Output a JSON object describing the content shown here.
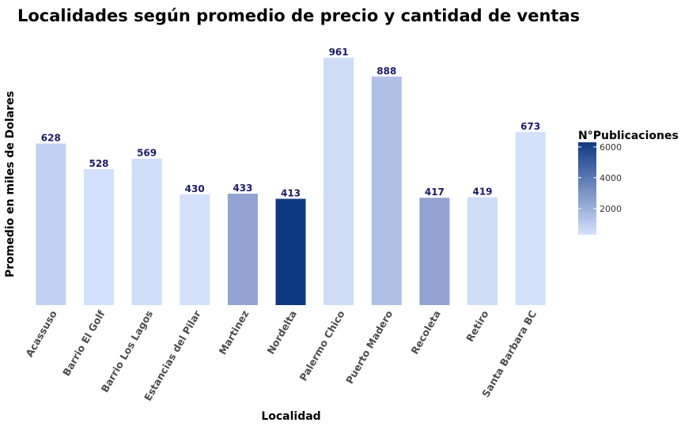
{
  "chart_data": {
    "type": "bar",
    "title": "Localidades según promedio de precio y cantidad de ventas",
    "xlabel": "Localidad",
    "ylabel": "Promedio en miles de Dolares",
    "categories": [
      "Acassuso",
      "Barrio El Golf",
      "Barrio Los Lagos",
      "Estancias del Pilar",
      "Martinez",
      "Nordelta",
      "Palermo Chico",
      "Puerto Madero",
      "Recoleta",
      "Retiro",
      "Santa Barbara BC"
    ],
    "values": [
      628,
      528,
      569,
      430,
      433,
      413,
      961,
      888,
      417,
      419,
      673
    ],
    "value_labels": [
      "628",
      "528",
      "569",
      "430",
      "433",
      "413",
      "961",
      "888",
      "417",
      "419",
      "673"
    ],
    "colors": [
      "#c2d1f2",
      "#d4e1fc",
      "#d0ddf9",
      "#d4e1fc",
      "#94a3d1",
      "#0f3882",
      "#cfdcf8",
      "#b1c1e6",
      "#94a3d1",
      "#cfdcf8",
      "#d4e1fc"
    ],
    "ylim": [
      0,
      1000
    ],
    "grid": false,
    "legend": {
      "title": "N°Publicaciones",
      "placement": "right",
      "ticks": [
        2000,
        4000,
        6000
      ],
      "tick_labels": [
        "2000",
        "4000",
        "6000"
      ],
      "range": [
        300,
        6300
      ],
      "color_low": "#d4e1fc",
      "color_high": "#0f3882"
    }
  }
}
